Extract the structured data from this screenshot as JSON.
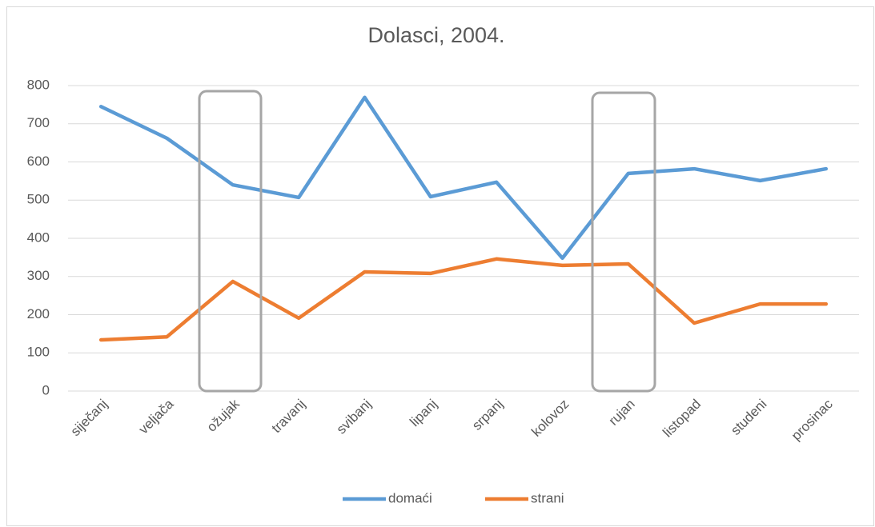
{
  "chart_data": {
    "type": "line",
    "title": "Dolasci, 2004.",
    "categories": [
      "siječanj",
      "veljača",
      "ožujak",
      "travanj",
      "svibanj",
      "lipanj",
      "srpanj",
      "kolovoz",
      "rujan",
      "listopad",
      "studeni",
      "prosinac"
    ],
    "series": [
      {
        "name": "domaći",
        "color": "#5b9bd5",
        "values": [
          745,
          662,
          540,
          507,
          769,
          509,
          547,
          348,
          570,
          582,
          551,
          582
        ]
      },
      {
        "name": "strani",
        "color": "#ed7d31",
        "values": [
          134,
          142,
          287,
          191,
          312,
          308,
          346,
          329,
          333,
          178,
          228,
          228
        ]
      }
    ],
    "ylim": [
      0,
      800
    ],
    "yticks": [
      0,
      100,
      200,
      300,
      400,
      500,
      600,
      700,
      800
    ],
    "grid": true,
    "legend": "bottom"
  }
}
